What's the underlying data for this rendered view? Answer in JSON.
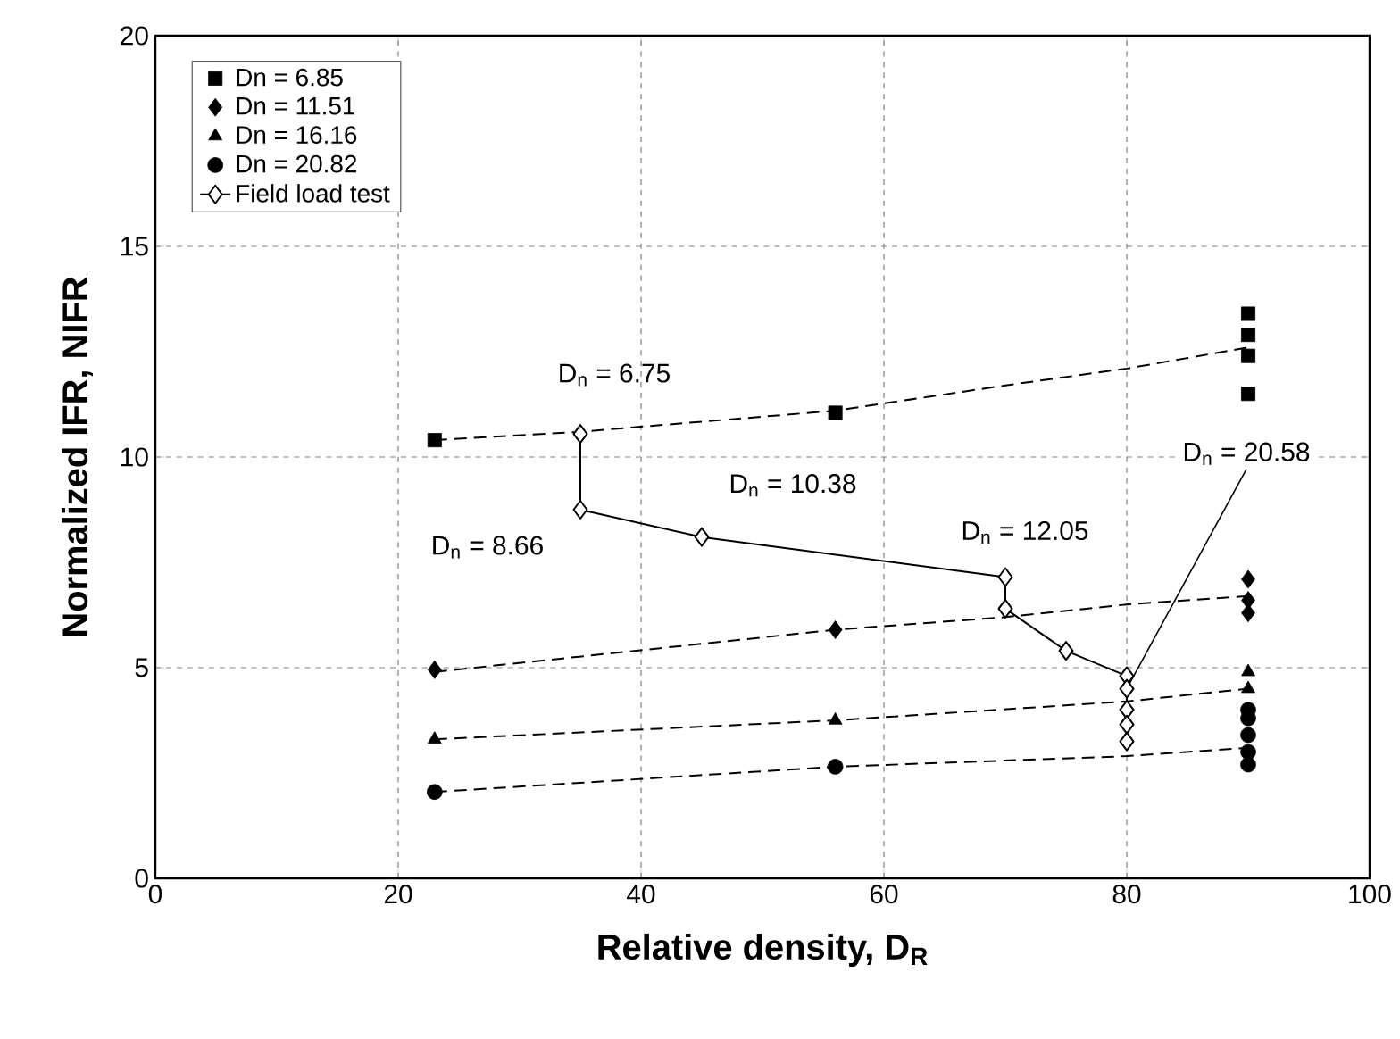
{
  "chart_data": {
    "type": "scatter",
    "xlabel": "Relative density, D$_{R}$",
    "ylabel": "Normalized IFR, NIFR",
    "xlim": [
      0,
      100
    ],
    "ylim": [
      0,
      20
    ],
    "xticks": [
      0,
      20,
      40,
      60,
      80,
      100
    ],
    "yticks": [
      0,
      5,
      10,
      15,
      20
    ],
    "grid": true,
    "legend": "top left",
    "series": [
      {
        "type": "line",
        "line_style": "dashed",
        "marker": "none",
        "color": "#000000",
        "x": [
          23,
          35,
          56,
          70,
          80,
          90
        ],
        "values": [
          10.4,
          10.6,
          11.1,
          11.7,
          12.1,
          12.6
        ]
      },
      {
        "type": "line",
        "line_style": "dashed",
        "marker": "none",
        "color": "#000000",
        "x": [
          23,
          56,
          70,
          80,
          90
        ],
        "values": [
          4.9,
          5.9,
          6.2,
          6.5,
          6.7
        ]
      },
      {
        "type": "line",
        "line_style": "dashed",
        "marker": "none",
        "color": "#000000",
        "x": [
          23,
          56,
          80,
          90
        ],
        "values": [
          3.3,
          3.75,
          4.2,
          4.5
        ]
      },
      {
        "type": "line",
        "line_style": "dashed",
        "marker": "none",
        "color": "#000000",
        "x": [
          23,
          56,
          80,
          90
        ],
        "values": [
          2.05,
          2.65,
          2.9,
          3.1
        ]
      },
      {
        "name": "Dn = 6.85",
        "marker": "square",
        "color": "#000000",
        "x": [
          23,
          56,
          90,
          90,
          90,
          90
        ],
        "values": [
          10.4,
          11.05,
          13.4,
          12.9,
          12.4,
          11.5
        ]
      },
      {
        "name": "Dn = 11.51",
        "marker": "diamond",
        "color": "#000000",
        "x": [
          23,
          56,
          90,
          90,
          90
        ],
        "values": [
          4.95,
          5.9,
          7.1,
          6.6,
          6.3
        ]
      },
      {
        "name": "Dn = 16.16",
        "marker": "triangle",
        "color": "#000000",
        "x": [
          23,
          56,
          90,
          90
        ],
        "values": [
          3.3,
          3.75,
          4.9,
          4.5
        ]
      },
      {
        "name": "Dn = 20.82",
        "marker": "circle",
        "color": "#000000",
        "x": [
          23,
          56,
          90,
          90,
          90,
          90,
          90
        ],
        "values": [
          2.05,
          2.65,
          4.0,
          3.8,
          3.4,
          3.0,
          2.7
        ]
      },
      {
        "name": "Field load test",
        "type": "line",
        "line_style": "solid",
        "marker": "diamond",
        "color": "#000000",
        "x": [
          35,
          35,
          45,
          70,
          70,
          75,
          80,
          80,
          80,
          80,
          80
        ],
        "values": [
          10.55,
          8.75,
          8.1,
          7.15,
          6.4,
          5.4,
          4.8,
          4.5,
          4.0,
          3.65,
          3.25
        ]
      }
    ],
    "annotations": [
      {
        "text": "D$_{n}$ = 6.75",
        "x": 35,
        "y": 10.55
      },
      {
        "text": "D$_{n}$ = 8.66",
        "x": 35,
        "y": 8.75
      },
      {
        "text": "D$_{n}$ = 10.38",
        "x": 45,
        "y": 8.1
      },
      {
        "text": "D$_{n}$ = 12.05",
        "x": 70,
        "y": 7.15
      },
      {
        "text": "D$_{n}$ = 20.58",
        "x": 80,
        "y": 4.5
      }
    ]
  }
}
